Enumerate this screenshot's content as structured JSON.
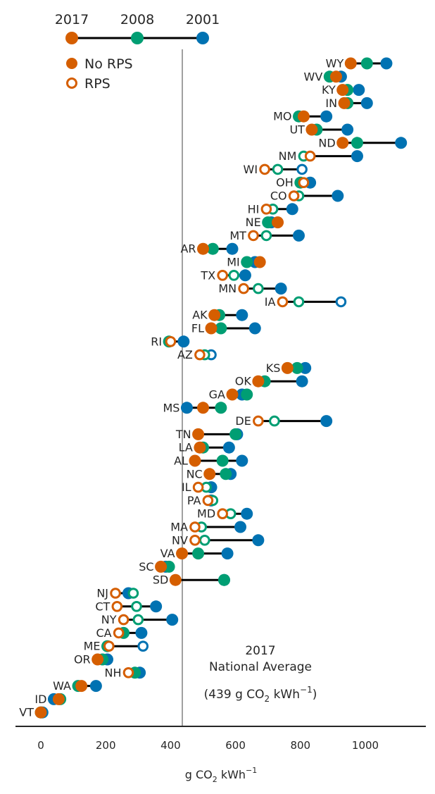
{
  "chart_data": {
    "type": "scatter",
    "xlabel": "g CO2 kWh-1",
    "xlabel_parts": {
      "base": "g CO",
      "sub": "2",
      "mid": " kWh",
      "sup": "−1"
    },
    "xlim": [
      -75,
      1185
    ],
    "xticks": [
      0,
      200,
      400,
      600,
      800,
      1000
    ],
    "years": [
      "2017",
      "2008",
      "2001"
    ],
    "colors": {
      "2017": "#d55e00",
      "2008": "#009e73",
      "2001": "#0072b2",
      "line": "#000000",
      "avg_line": "#808080",
      "axis": "#262626"
    },
    "legend": {
      "no_rps": "No RPS",
      "rps": "RPS"
    },
    "national_average": {
      "value": 439,
      "line1": "2017",
      "line2": "National Average",
      "line3_parts": {
        "pre": "(439 g CO",
        "sub": "2",
        "mid": " kWh",
        "sup": "−1",
        "post": ")"
      }
    },
    "states": [
      {
        "name": "WY",
        "v2017": 955,
        "v2008": 1005,
        "v2001": 1065,
        "rps2017": false,
        "rps2008": false,
        "rps2001": false
      },
      {
        "name": "WV",
        "v2017": 910,
        "v2008": 890,
        "v2001": 925,
        "rps2017": false,
        "rps2008": false,
        "rps2001": false
      },
      {
        "name": "KY",
        "v2017": 930,
        "v2008": 945,
        "v2001": 980,
        "rps2017": false,
        "rps2008": false,
        "rps2001": false
      },
      {
        "name": "IN",
        "v2017": 935,
        "v2008": 945,
        "v2001": 1005,
        "rps2017": false,
        "rps2008": false,
        "rps2001": false
      },
      {
        "name": "MO",
        "v2017": 810,
        "v2008": 795,
        "v2001": 880,
        "rps2017": false,
        "rps2008": false,
        "rps2001": false
      },
      {
        "name": "UT",
        "v2017": 835,
        "v2008": 850,
        "v2001": 945,
        "rps2017": false,
        "rps2008": false,
        "rps2001": false
      },
      {
        "name": "ND",
        "v2017": 930,
        "v2008": 975,
        "v2001": 1110,
        "rps2017": false,
        "rps2008": false,
        "rps2001": false
      },
      {
        "name": "NM",
        "v2017": 830,
        "v2008": 810,
        "v2001": 975,
        "rps2017": true,
        "rps2008": true,
        "rps2001": false
      },
      {
        "name": "WI",
        "v2017": 690,
        "v2008": 730,
        "v2001": 805,
        "rps2017": true,
        "rps2008": true,
        "rps2001": true
      },
      {
        "name": "OH",
        "v2017": 810,
        "v2008": 800,
        "v2001": 830,
        "rps2017": true,
        "rps2008": false,
        "rps2001": false
      },
      {
        "name": "CO",
        "v2017": 780,
        "v2008": 795,
        "v2001": 915,
        "rps2017": true,
        "rps2008": true,
        "rps2001": false
      },
      {
        "name": "HI",
        "v2017": 695,
        "v2008": 715,
        "v2001": 775,
        "rps2017": true,
        "rps2008": true,
        "rps2001": false
      },
      {
        "name": "NE",
        "v2017": 730,
        "v2008": 700,
        "v2001": 710,
        "rps2017": false,
        "rps2008": false,
        "rps2001": false
      },
      {
        "name": "MT",
        "v2017": 655,
        "v2008": 695,
        "v2001": 795,
        "rps2017": true,
        "rps2008": true,
        "rps2001": false
      },
      {
        "name": "AR",
        "v2017": 500,
        "v2008": 530,
        "v2001": 590,
        "rps2017": false,
        "rps2008": false,
        "rps2001": false
      },
      {
        "name": "MI",
        "v2017": 675,
        "v2008": 635,
        "v2001": 660,
        "rps2017": false,
        "rps2008": false,
        "rps2001": false
      },
      {
        "name": "TX",
        "v2017": 560,
        "v2008": 595,
        "v2001": 630,
        "rps2017": true,
        "rps2008": true,
        "rps2001": false
      },
      {
        "name": "MN",
        "v2017": 625,
        "v2008": 670,
        "v2001": 740,
        "rps2017": true,
        "rps2008": true,
        "rps2001": false
      },
      {
        "name": "IA",
        "v2017": 745,
        "v2008": 795,
        "v2001": 925,
        "rps2017": true,
        "rps2008": true,
        "rps2001": true
      },
      {
        "name": "AK",
        "v2017": 535,
        "v2008": 550,
        "v2001": 620,
        "rps2017": false,
        "rps2008": false,
        "rps2001": false
      },
      {
        "name": "FL",
        "v2017": 525,
        "v2008": 555,
        "v2001": 660,
        "rps2017": false,
        "rps2008": false,
        "rps2001": false
      },
      {
        "name": "RI",
        "v2017": 400,
        "v2008": 395,
        "v2001": 440,
        "rps2017": true,
        "rps2008": false,
        "rps2001": false
      },
      {
        "name": "AZ",
        "v2017": 490,
        "v2008": 505,
        "v2001": 525,
        "rps2017": true,
        "rps2008": true,
        "rps2001": true
      },
      {
        "name": "KS",
        "v2017": 760,
        "v2008": 790,
        "v2001": 815,
        "rps2017": false,
        "rps2008": false,
        "rps2001": false
      },
      {
        "name": "OK",
        "v2017": 670,
        "v2008": 690,
        "v2001": 805,
        "rps2017": false,
        "rps2008": false,
        "rps2001": false
      },
      {
        "name": "GA",
        "v2017": 590,
        "v2008": 635,
        "v2001": 620,
        "rps2017": false,
        "rps2008": false,
        "rps2001": false
      },
      {
        "name": "MS",
        "v2017": 500,
        "v2008": 555,
        "v2001": 450,
        "rps2017": false,
        "rps2008": false,
        "rps2001": false
      },
      {
        "name": "DE",
        "v2017": 670,
        "v2008": 720,
        "v2001": 880,
        "rps2017": true,
        "rps2008": true,
        "rps2001": false
      },
      {
        "name": "TN",
        "v2017": 485,
        "v2008": 600,
        "v2001": 605,
        "rps2017": false,
        "rps2008": false,
        "rps2001": false
      },
      {
        "name": "LA",
        "v2017": 490,
        "v2008": 500,
        "v2001": 580,
        "rps2017": false,
        "rps2008": false,
        "rps2001": false
      },
      {
        "name": "AL",
        "v2017": 475,
        "v2008": 560,
        "v2001": 620,
        "rps2017": false,
        "rps2008": false,
        "rps2001": false
      },
      {
        "name": "NC",
        "v2017": 520,
        "v2008": 570,
        "v2001": 585,
        "rps2017": false,
        "rps2008": false,
        "rps2001": false
      },
      {
        "name": "IL",
        "v2017": 485,
        "v2008": 510,
        "v2001": 525,
        "rps2017": true,
        "rps2008": true,
        "rps2001": false
      },
      {
        "name": "PA",
        "v2017": 515,
        "v2008": 530,
        "v2001": 525,
        "rps2017": true,
        "rps2008": true,
        "rps2001": false
      },
      {
        "name": "MD",
        "v2017": 560,
        "v2008": 585,
        "v2001": 635,
        "rps2017": true,
        "rps2008": true,
        "rps2001": false
      },
      {
        "name": "MA",
        "v2017": 475,
        "v2008": 495,
        "v2001": 615,
        "rps2017": true,
        "rps2008": true,
        "rps2001": false
      },
      {
        "name": "NV",
        "v2017": 475,
        "v2008": 505,
        "v2001": 670,
        "rps2017": true,
        "rps2008": true,
        "rps2001": false
      },
      {
        "name": "VA",
        "v2017": 435,
        "v2008": 485,
        "v2001": 575,
        "rps2017": false,
        "rps2008": false,
        "rps2001": false
      },
      {
        "name": "SC",
        "v2017": 370,
        "v2008": 395,
        "v2001": 385,
        "rps2017": false,
        "rps2008": false,
        "rps2001": false
      },
      {
        "name": "SD",
        "v2017": 415,
        "v2008": 565,
        "v2001": 565,
        "rps2017": false,
        "rps2008": false,
        "rps2001": false
      },
      {
        "name": "NJ",
        "v2017": 230,
        "v2008": 285,
        "v2001": 270,
        "rps2017": true,
        "rps2008": true,
        "rps2001": false
      },
      {
        "name": "CT",
        "v2017": 235,
        "v2008": 295,
        "v2001": 355,
        "rps2017": true,
        "rps2008": true,
        "rps2001": false
      },
      {
        "name": "NY",
        "v2017": 255,
        "v2008": 300,
        "v2001": 405,
        "rps2017": true,
        "rps2008": true,
        "rps2001": false
      },
      {
        "name": "CA",
        "v2017": 240,
        "v2008": 255,
        "v2001": 310,
        "rps2017": true,
        "rps2008": false,
        "rps2001": false
      },
      {
        "name": "ME",
        "v2017": 210,
        "v2008": 205,
        "v2001": 315,
        "rps2017": true,
        "rps2008": false,
        "rps2001": true
      },
      {
        "name": "OR",
        "v2017": 175,
        "v2008": 190,
        "v2001": 205,
        "rps2017": false,
        "rps2008": false,
        "rps2001": false
      },
      {
        "name": "NH",
        "v2017": 270,
        "v2008": 290,
        "v2001": 305,
        "rps2017": true,
        "rps2008": false,
        "rps2001": false
      },
      {
        "name": "WA",
        "v2017": 125,
        "v2008": 115,
        "v2001": 170,
        "rps2017": false,
        "rps2008": false,
        "rps2001": false
      },
      {
        "name": "ID",
        "v2017": 55,
        "v2008": 60,
        "v2001": 40,
        "rps2017": false,
        "rps2008": false,
        "rps2001": false
      },
      {
        "name": "VT",
        "v2017": 0,
        "v2008": 0,
        "v2001": 5,
        "rps2017": false,
        "rps2008": false,
        "rps2001": false
      }
    ]
  }
}
